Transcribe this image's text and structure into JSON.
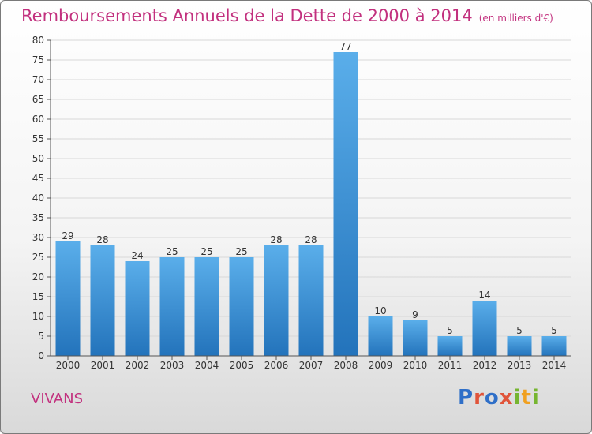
{
  "header": {
    "title": "Remboursements Annuels de la Dette de 2000 à 2014",
    "unit": "(en milliers d'€)"
  },
  "footer": {
    "commune": "VIVANS",
    "logo_text": "Proxiti"
  },
  "colors": {
    "title": "#c2307e",
    "bar_light": "#5aaeea",
    "bar_dark": "#2373bb",
    "grid": "#d8d8d8"
  },
  "chart_data": {
    "type": "bar",
    "title": "Remboursements Annuels de la Dette de 2000 à 2014",
    "unit_note": "(en milliers d'€)",
    "xlabel": "",
    "ylabel": "",
    "categories": [
      "2000",
      "2001",
      "2002",
      "2003",
      "2004",
      "2005",
      "2006",
      "2007",
      "2008",
      "2009",
      "2010",
      "2011",
      "2012",
      "2013",
      "2014"
    ],
    "values": [
      29,
      28,
      24,
      25,
      25,
      25,
      28,
      28,
      77,
      10,
      9,
      5,
      14,
      5,
      5
    ],
    "data_labels": true,
    "ylim": [
      0,
      80
    ],
    "yticks": [
      0,
      5,
      10,
      15,
      20,
      25,
      30,
      35,
      40,
      45,
      50,
      55,
      60,
      65,
      70,
      75,
      80
    ],
    "grid": "horizontal"
  }
}
